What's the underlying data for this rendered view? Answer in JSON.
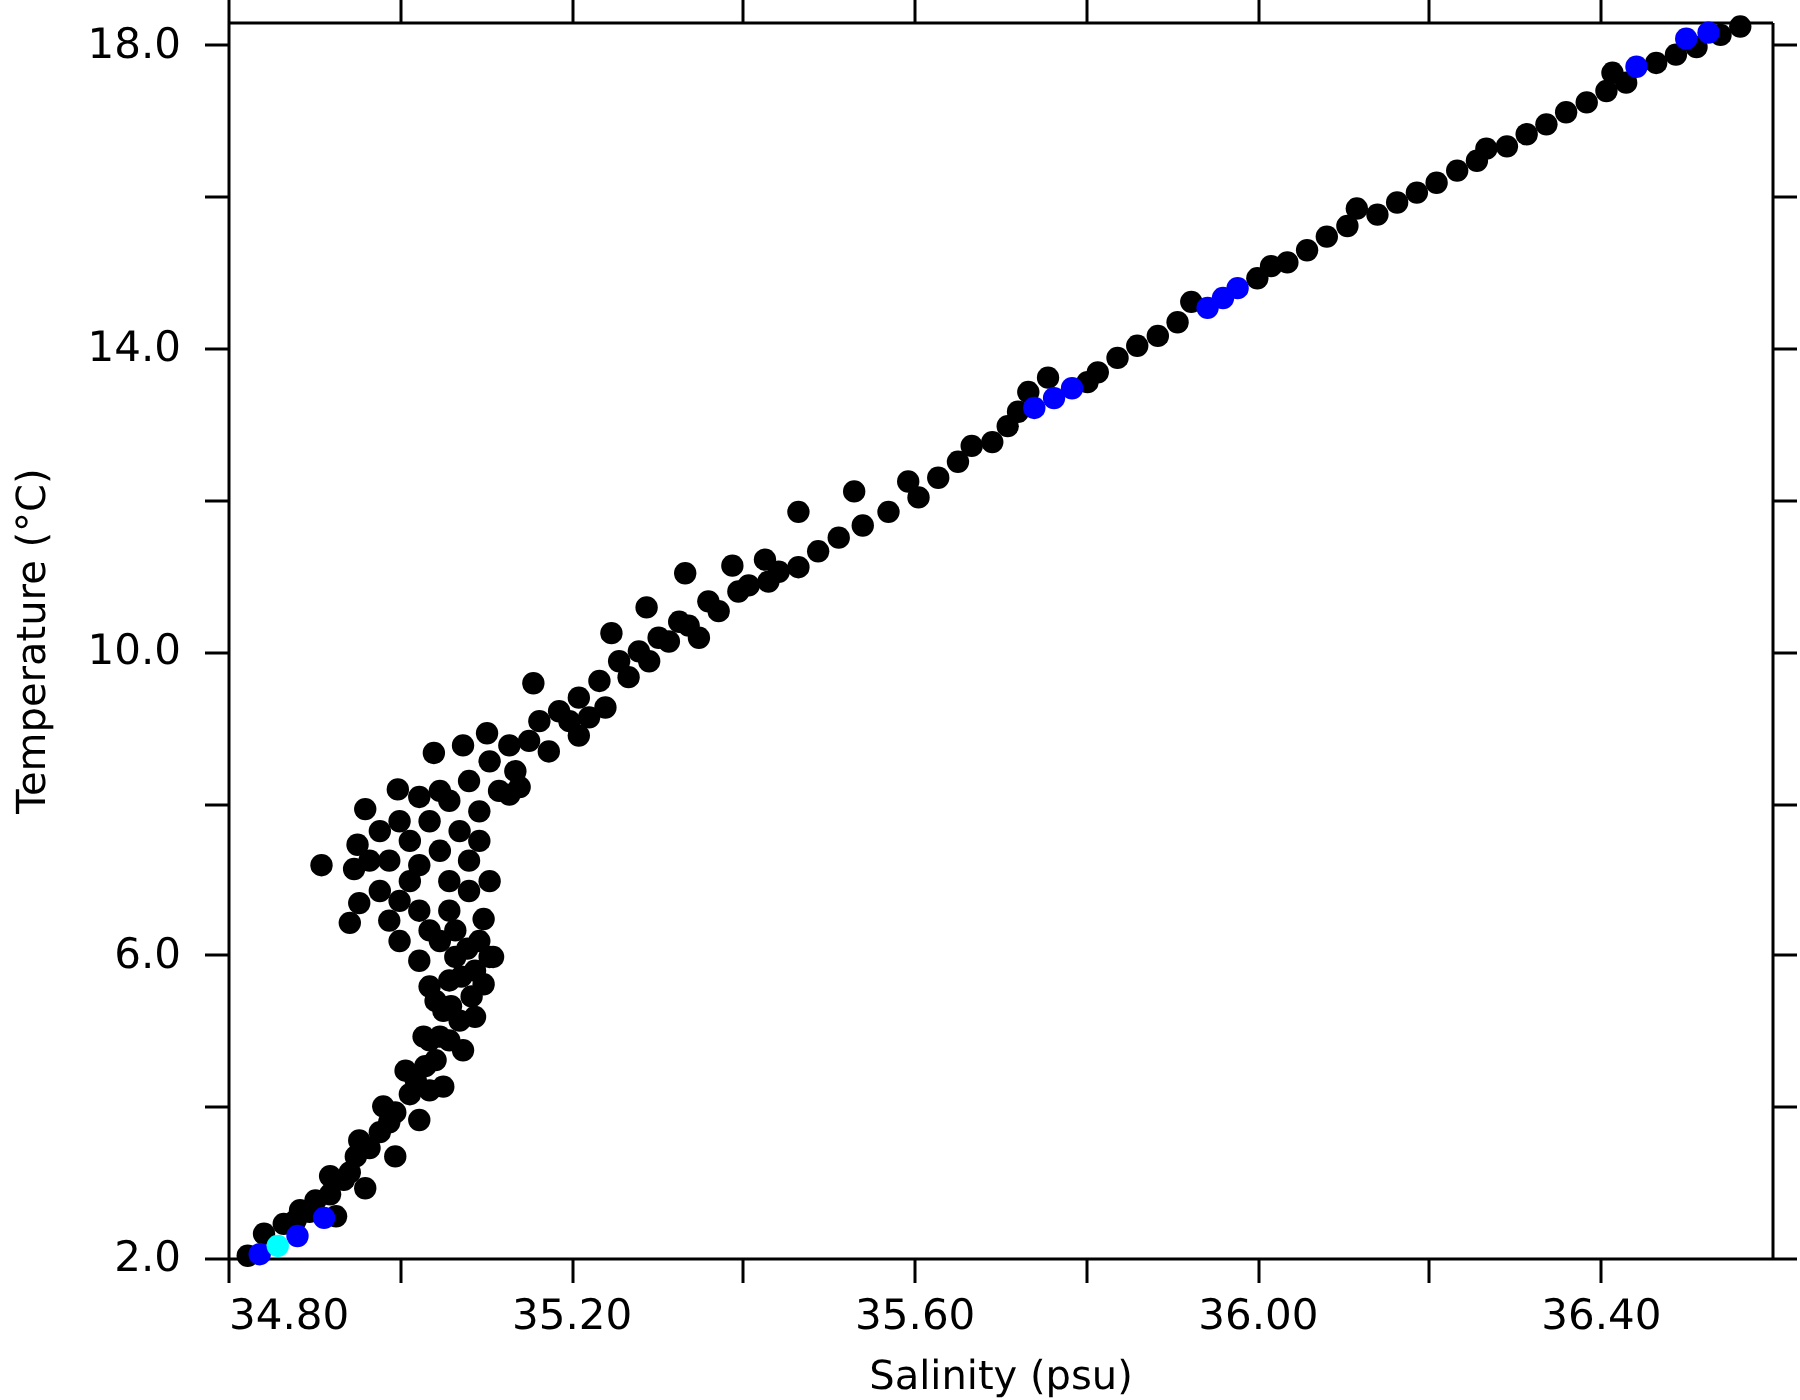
{
  "chart_data": {
    "type": "scatter",
    "xlabel": "Salinity (psu)",
    "ylabel": "Temperature (°C)",
    "xlim": [
      34.8,
      36.6
    ],
    "ylim": [
      2,
      18.3
    ],
    "xticks": [
      {
        "value": 34.8,
        "label": "34.80"
      },
      {
        "value": 35.0,
        "label": null
      },
      {
        "value": 35.2,
        "label": "35.20"
      },
      {
        "value": 35.4,
        "label": null
      },
      {
        "value": 35.6,
        "label": "35.60"
      },
      {
        "value": 35.8,
        "label": null
      },
      {
        "value": 36.0,
        "label": "36.00"
      },
      {
        "value": 36.2,
        "label": null
      },
      {
        "value": 36.4,
        "label": "36.40"
      }
    ],
    "yticks": [
      {
        "value": 2,
        "label": "2.0"
      },
      {
        "value": 4,
        "label": null
      },
      {
        "value": 6,
        "label": "6.0"
      },
      {
        "value": 8,
        "label": null
      },
      {
        "value": 10,
        "label": "10.0"
      },
      {
        "value": 12,
        "label": null
      },
      {
        "value": 14,
        "label": "14.0"
      },
      {
        "value": 16,
        "label": null
      },
      {
        "value": 18,
        "label": "18.0"
      }
    ],
    "marker": "circle",
    "series": [
      {
        "color": "#000000",
        "x": [
          34.823,
          34.895,
          34.919,
          34.942,
          34.965,
          34.988,
          35.012,
          35.03,
          35.047,
          35.06,
          35.072,
          35.079,
          34.884,
          34.919,
          34.953,
          34.981,
          35.007,
          35.028,
          35.042,
          34.926,
          34.96,
          34.995,
          35.023,
          35.051,
          35.074,
          35.088,
          35.098,
          35.105,
          35.035,
          35.109,
          35.098,
          35.065,
          35.047,
          35.023,
          35.0,
          34.977,
          34.953,
          34.942,
          34.947,
          34.909,
          34.951,
          34.96,
          34.998,
          34.988,
          35.012,
          35.035,
          35.058,
          35.081,
          35.07,
          35.093,
          35.047,
          35.081,
          35.116,
          35.105,
          35.135,
          35.14,
          35.04,
          35.074,
          35.102,
          35.128,
          35.151,
          35.163,
          35.156,
          35.186,
          35.209,
          35.209,
          35.233,
          35.24,
          35.247,
          35.256,
          35.279,
          35.288,
          35.302,
          35.326,
          35.333,
          35.349,
          35.36,
          35.388,
          35.395,
          35.426,
          35.43,
          35.465,
          35.465,
          35.488,
          35.512,
          35.53,
          35.54,
          35.57,
          35.593,
          35.605,
          35.628,
          35.651,
          35.667,
          35.691,
          35.709,
          35.721,
          35.733,
          35.756,
          35.802,
          35.814,
          35.837,
          35.86,
          35.884,
          35.907,
          35.923,
          36.0,
          36.016,
          36.035,
          36.058,
          36.081,
          36.105,
          36.116,
          36.14,
          36.163,
          36.186,
          36.209,
          36.233,
          36.256,
          36.267,
          36.291,
          36.314,
          36.337,
          36.36,
          36.384,
          36.407,
          36.414,
          36.43,
          36.465,
          36.488,
          36.512,
          36.54,
          36.563,
          34.842,
          34.865,
          34.879,
          34.902,
          34.935,
          34.949,
          34.977,
          34.995,
          35.035,
          35.019,
          35.042,
          35.058,
          35.035,
          35.07,
          35.051,
          35.084,
          35.058,
          35.088,
          35.065,
          35.093,
          34.965,
          34.977,
          35.0,
          35.023,
          35.047,
          35.058,
          35.081,
          35.035,
          35.012,
          34.988,
          35.0,
          35.023,
          35.105,
          35.093,
          35.058,
          35.023,
          35.128,
          35.174,
          35.198,
          35.221,
          35.267,
          35.291,
          35.314,
          35.337,
          35.372,
          35.407,
          35.442
        ],
        "values": [
          2.03,
          2.61,
          2.84,
          3.13,
          3.45,
          3.79,
          4.16,
          4.53,
          4.92,
          5.32,
          5.71,
          6.08,
          2.63,
          3.08,
          3.55,
          4.0,
          4.47,
          4.92,
          5.39,
          2.55,
          2.92,
          3.34,
          3.82,
          4.26,
          4.74,
          5.18,
          5.61,
          5.97,
          5.58,
          5.97,
          6.47,
          6.32,
          6.18,
          6.58,
          6.71,
          6.84,
          6.68,
          6.42,
          7.13,
          7.18,
          7.45,
          7.92,
          8.18,
          7.24,
          7.5,
          7.76,
          6.97,
          7.24,
          7.63,
          7.89,
          8.16,
          8.29,
          8.16,
          8.55,
          8.42,
          8.21,
          8.66,
          8.76,
          8.92,
          8.76,
          8.82,
          9.08,
          9.58,
          9.21,
          8.89,
          9.39,
          9.61,
          9.26,
          10.24,
          9.87,
          10.0,
          10.58,
          10.18,
          10.39,
          11.03,
          10.18,
          10.66,
          11.13,
          10.79,
          11.21,
          10.92,
          11.84,
          11.11,
          11.32,
          11.5,
          12.11,
          11.66,
          11.84,
          12.24,
          12.03,
          12.29,
          12.5,
          12.71,
          12.76,
          12.97,
          13.16,
          13.42,
          13.61,
          13.55,
          13.68,
          13.87,
          14.03,
          14.16,
          14.34,
          14.61,
          14.92,
          15.08,
          15.13,
          15.29,
          15.47,
          15.61,
          15.84,
          15.76,
          15.92,
          16.05,
          16.18,
          16.34,
          16.47,
          16.63,
          16.66,
          16.82,
          16.95,
          17.11,
          17.24,
          17.39,
          17.63,
          17.5,
          17.76,
          17.87,
          17.97,
          18.13,
          18.24,
          2.32,
          2.45,
          2.5,
          2.76,
          3.03,
          3.34,
          3.66,
          3.92,
          4.21,
          4.34,
          4.61,
          4.87,
          4.87,
          5.13,
          5.26,
          5.45,
          5.66,
          5.79,
          5.97,
          6.18,
          7.24,
          7.63,
          7.76,
          7.18,
          7.37,
          6.58,
          6.84,
          6.32,
          6.97,
          6.45,
          6.18,
          5.92,
          6.97,
          7.5,
          8.03,
          8.08,
          8.11,
          8.68,
          9.08,
          9.13,
          9.66,
          9.87,
          10.13,
          10.34,
          10.53,
          10.87,
          11.05
        ]
      },
      {
        "color": "#0000ff",
        "x": [
          34.837,
          34.881,
          34.912,
          35.74,
          35.763,
          35.784,
          35.942,
          35.96,
          35.977,
          36.442,
          36.5,
          36.526
        ],
        "values": [
          2.05,
          2.29,
          2.53,
          13.21,
          13.34,
          13.47,
          14.53,
          14.66,
          14.79,
          17.71,
          18.08,
          18.16
        ]
      },
      {
        "color": "#00ffff",
        "x": [
          34.858
        ],
        "values": [
          2.16
        ]
      }
    ]
  }
}
